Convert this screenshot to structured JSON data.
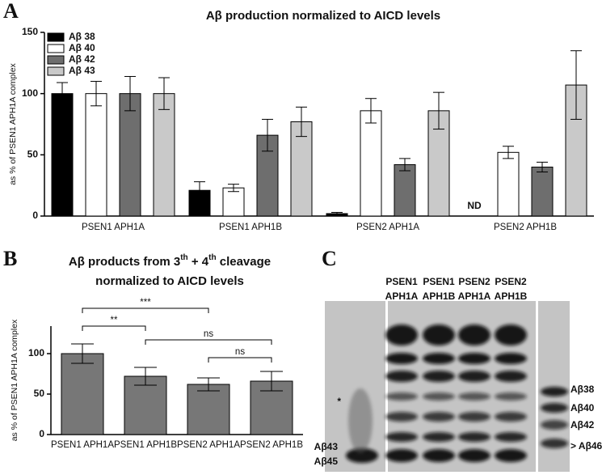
{
  "chart_data": [
    {
      "type": "bar",
      "panel_label": "A",
      "title": "Aβ production normalized to AICD levels",
      "y_label": "as % of PSEN1 APH1A complex",
      "categories": [
        "PSEN1 APH1A",
        "PSEN1 APH1B",
        "PSEN2 APH1A",
        "PSEN2 APH1B"
      ],
      "series": [
        {
          "name": "Aβ 38",
          "color": "#000000",
          "values": [
            100,
            21,
            2,
            null
          ],
          "errors": [
            9,
            7,
            1,
            null
          ]
        },
        {
          "name": "Aβ 40",
          "color": "#ffffff",
          "values": [
            100,
            23,
            86,
            52
          ],
          "errors": [
            10,
            3,
            10,
            5
          ]
        },
        {
          "name": "Aβ 42",
          "color": "#6e6e6e",
          "values": [
            100,
            66,
            42,
            40
          ],
          "errors": [
            14,
            13,
            5,
            4
          ]
        },
        {
          "name": "Aβ 43",
          "color": "#c9c9c9",
          "values": [
            100,
            77,
            86,
            107
          ],
          "errors": [
            13,
            12,
            15,
            28
          ]
        }
      ],
      "null_label": "ND",
      "ylim": [
        0,
        150
      ],
      "yticks": [
        0,
        50,
        100,
        150
      ],
      "legend": "top-left",
      "grid": false
    },
    {
      "type": "bar",
      "panel_label": "B",
      "title_segments": [
        "Aβ products from 3",
        "th",
        " + 4",
        "th",
        " cleavage"
      ],
      "title_line2": "normalized to AICD levels",
      "y_label": "as % of PSEN1 APH1A complex",
      "categories": [
        "PSEN1 APH1A",
        "PSEN1 APH1B",
        "PSEN2 APH1A",
        "PSEN2 APH1B"
      ],
      "values": [
        100,
        72,
        62,
        66
      ],
      "errors": [
        12,
        11,
        8,
        12
      ],
      "color": "#777777",
      "comparisons": [
        {
          "pair": [
            "PSEN1 APH1A",
            "PSEN2 APH1A"
          ],
          "label": "***"
        },
        {
          "pair": [
            "PSEN1 APH1A",
            "PSEN1 APH1B"
          ],
          "label": "**"
        },
        {
          "pair": [
            "PSEN1 APH1B",
            "PSEN2 APH1B"
          ],
          "label": "ns"
        },
        {
          "pair": [
            "PSEN2 APH1A",
            "PSEN2 APH1B"
          ],
          "label": "ns"
        }
      ],
      "ylim": [
        0,
        134
      ],
      "yticks": [
        0,
        50,
        100
      ],
      "grid": false
    }
  ],
  "blot": {
    "panel_label": "C",
    "lanes": [
      [
        "PSEN1",
        "APH1A"
      ],
      [
        "PSEN1",
        "APH1B"
      ],
      [
        "PSEN2",
        "APH1A"
      ],
      [
        "PSEN2",
        "APH1B"
      ]
    ],
    "left_labels": [
      "*",
      "Aβ43",
      "Aβ45"
    ],
    "right_labels": [
      "Aβ38",
      "Aβ40",
      "Aβ42",
      "> Aβ46"
    ]
  }
}
